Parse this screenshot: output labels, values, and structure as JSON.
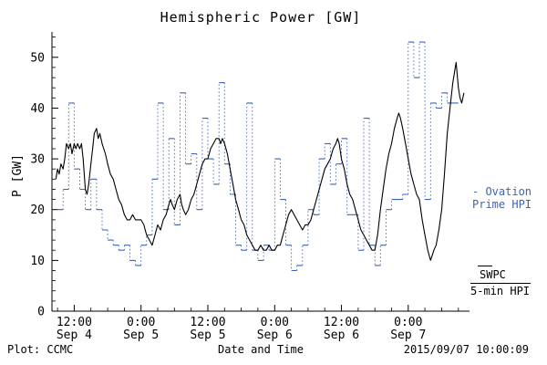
{
  "colors": {
    "swpc": "#000000",
    "ovation": "#3f63b5"
  },
  "legend": {
    "ovation_line1": "- Ovation",
    "ovation_line2": "Prime HPI",
    "swpc_line1": "SWPC",
    "swpc_line2": "5-min HPI"
  },
  "footer": {
    "credit": "Plot: CCMC",
    "timestamp": "2015/09/07 10:00:09"
  },
  "chart_data": {
    "type": "line",
    "title": "Hemispheric Power [GW]",
    "xlabel": "Date and Time",
    "ylabel": "P [GW]",
    "x_range_hours_from_sep4_0000": [
      8,
      83
    ],
    "ylim": [
      0,
      55
    ],
    "y_ticks": [
      0,
      10,
      20,
      30,
      40,
      50
    ],
    "x_ticks": [
      {
        "hour": 12,
        "line1": "12:00",
        "line2": "Sep 4"
      },
      {
        "hour": 24,
        "line1": "0:00",
        "line2": "Sep 5"
      },
      {
        "hour": 36,
        "line1": "12:00",
        "line2": "Sep 5"
      },
      {
        "hour": 48,
        "line1": "0:00",
        "line2": "Sep 6"
      },
      {
        "hour": 60,
        "line1": "12:00",
        "line2": "Sep 6"
      },
      {
        "hour": 72,
        "line1": "0:00",
        "line2": "Sep 7"
      }
    ],
    "series": [
      {
        "name": "SWPC 5-min HPI",
        "style": "line",
        "color": "#000000",
        "points": [
          [
            8.7,
            26
          ],
          [
            9,
            28
          ],
          [
            9.3,
            27
          ],
          [
            9.6,
            29
          ],
          [
            10,
            28
          ],
          [
            10.3,
            30
          ],
          [
            10.6,
            33
          ],
          [
            11,
            32
          ],
          [
            11.3,
            33
          ],
          [
            11.6,
            31
          ],
          [
            12,
            33
          ],
          [
            12.3,
            32
          ],
          [
            12.6,
            33
          ],
          [
            13,
            32
          ],
          [
            13.3,
            33
          ],
          [
            13.6,
            30
          ],
          [
            14,
            24
          ],
          [
            14.3,
            23
          ],
          [
            14.6,
            25
          ],
          [
            15,
            29
          ],
          [
            15.3,
            32
          ],
          [
            15.6,
            35
          ],
          [
            16,
            36
          ],
          [
            16.3,
            34
          ],
          [
            16.6,
            35
          ],
          [
            17,
            33
          ],
          [
            17.3,
            32
          ],
          [
            17.6,
            31
          ],
          [
            18,
            29
          ],
          [
            18.5,
            27
          ],
          [
            19,
            26
          ],
          [
            19.5,
            24
          ],
          [
            20,
            22
          ],
          [
            20.5,
            21
          ],
          [
            21,
            19
          ],
          [
            21.5,
            18
          ],
          [
            22,
            18
          ],
          [
            22.5,
            19
          ],
          [
            23,
            18
          ],
          [
            23.5,
            18
          ],
          [
            24,
            18
          ],
          [
            24.5,
            17
          ],
          [
            25,
            15
          ],
          [
            25.5,
            14
          ],
          [
            26,
            13
          ],
          [
            26.5,
            15
          ],
          [
            27,
            17
          ],
          [
            27.5,
            16
          ],
          [
            28,
            18
          ],
          [
            28.5,
            19
          ],
          [
            29,
            21
          ],
          [
            29.3,
            22
          ],
          [
            29.6,
            21
          ],
          [
            30,
            20
          ],
          [
            30.5,
            22
          ],
          [
            31,
            23
          ],
          [
            31.3,
            21
          ],
          [
            31.6,
            20
          ],
          [
            32,
            19
          ],
          [
            32.5,
            20
          ],
          [
            33,
            22
          ],
          [
            33.5,
            23
          ],
          [
            34,
            25
          ],
          [
            34.5,
            27
          ],
          [
            35,
            29
          ],
          [
            35.5,
            30
          ],
          [
            36,
            30
          ],
          [
            36.5,
            32
          ],
          [
            37,
            33
          ],
          [
            37.5,
            34
          ],
          [
            38,
            34
          ],
          [
            38.3,
            33
          ],
          [
            38.6,
            34
          ],
          [
            39,
            33
          ],
          [
            39.5,
            31
          ],
          [
            40,
            28
          ],
          [
            40.5,
            25
          ],
          [
            41,
            22
          ],
          [
            41.5,
            20
          ],
          [
            42,
            18
          ],
          [
            42.5,
            17
          ],
          [
            43,
            15
          ],
          [
            43.5,
            14
          ],
          [
            44,
            13
          ],
          [
            44.5,
            12
          ],
          [
            45,
            12
          ],
          [
            45.5,
            13
          ],
          [
            46,
            12
          ],
          [
            46.5,
            12
          ],
          [
            47,
            13
          ],
          [
            47.5,
            12
          ],
          [
            48,
            12
          ],
          [
            48.5,
            13
          ],
          [
            49,
            13
          ],
          [
            49.5,
            15
          ],
          [
            50,
            17
          ],
          [
            50.5,
            19
          ],
          [
            51,
            20
          ],
          [
            51.5,
            19
          ],
          [
            52,
            18
          ],
          [
            52.5,
            17
          ],
          [
            53,
            16
          ],
          [
            53.5,
            17
          ],
          [
            54,
            17
          ],
          [
            54.5,
            18
          ],
          [
            55,
            20
          ],
          [
            55.5,
            22
          ],
          [
            56,
            24
          ],
          [
            56.5,
            26
          ],
          [
            57,
            28
          ],
          [
            57.5,
            29
          ],
          [
            58,
            30
          ],
          [
            58.5,
            32
          ],
          [
            59,
            33
          ],
          [
            59.3,
            34
          ],
          [
            59.6,
            33
          ],
          [
            60,
            30
          ],
          [
            60.5,
            28
          ],
          [
            61,
            25
          ],
          [
            61.5,
            23
          ],
          [
            62,
            22
          ],
          [
            62.5,
            20
          ],
          [
            63,
            18
          ],
          [
            63.5,
            16
          ],
          [
            64,
            15
          ],
          [
            64.5,
            14
          ],
          [
            65,
            13
          ],
          [
            65.5,
            12
          ],
          [
            66,
            12
          ],
          [
            66.5,
            15
          ],
          [
            67,
            20
          ],
          [
            67.5,
            24
          ],
          [
            68,
            28
          ],
          [
            68.5,
            31
          ],
          [
            69,
            33
          ],
          [
            69.5,
            36
          ],
          [
            70,
            38
          ],
          [
            70.3,
            39
          ],
          [
            70.6,
            38
          ],
          [
            71,
            36
          ],
          [
            71.5,
            33
          ],
          [
            72,
            30
          ],
          [
            72.5,
            27
          ],
          [
            73,
            25
          ],
          [
            73.5,
            23
          ],
          [
            74,
            22
          ],
          [
            74.5,
            18
          ],
          [
            75,
            15
          ],
          [
            75.5,
            12
          ],
          [
            76,
            10
          ],
          [
            76.3,
            11
          ],
          [
            76.6,
            12
          ],
          [
            77,
            13
          ],
          [
            77.5,
            16
          ],
          [
            78,
            20
          ],
          [
            78.5,
            27
          ],
          [
            79,
            35
          ],
          [
            79.5,
            40
          ],
          [
            80,
            45
          ],
          [
            80.3,
            47
          ],
          [
            80.6,
            49
          ],
          [
            81,
            44
          ],
          [
            81.3,
            42
          ],
          [
            81.6,
            41
          ],
          [
            82,
            43
          ]
        ]
      },
      {
        "name": "Ovation Prime HPI",
        "style": "step",
        "color": "#3f63b5",
        "points": [
          [
            9,
            20
          ],
          [
            10,
            24
          ],
          [
            11,
            41
          ],
          [
            12,
            28
          ],
          [
            13,
            24
          ],
          [
            14,
            20
          ],
          [
            15,
            26
          ],
          [
            16,
            20
          ],
          [
            17,
            16
          ],
          [
            18,
            14
          ],
          [
            19,
            13
          ],
          [
            20,
            12
          ],
          [
            21,
            13
          ],
          [
            22,
            10
          ],
          [
            23,
            9
          ],
          [
            24,
            13
          ],
          [
            25,
            15
          ],
          [
            26,
            26
          ],
          [
            27,
            41
          ],
          [
            28,
            20
          ],
          [
            29,
            34
          ],
          [
            30,
            17
          ],
          [
            31,
            43
          ],
          [
            32,
            29
          ],
          [
            33,
            31
          ],
          [
            34,
            20
          ],
          [
            35,
            38
          ],
          [
            36,
            30
          ],
          [
            37,
            25
          ],
          [
            38,
            45
          ],
          [
            39,
            29
          ],
          [
            40,
            23
          ],
          [
            41,
            13
          ],
          [
            42,
            12
          ],
          [
            43,
            41
          ],
          [
            44,
            12
          ],
          [
            45,
            10
          ],
          [
            46,
            13
          ],
          [
            47,
            12
          ],
          [
            48,
            30
          ],
          [
            49,
            22
          ],
          [
            50,
            13
          ],
          [
            51,
            8
          ],
          [
            52,
            9
          ],
          [
            53,
            13
          ],
          [
            54,
            20
          ],
          [
            55,
            19
          ],
          [
            56,
            30
          ],
          [
            57,
            33
          ],
          [
            58,
            25
          ],
          [
            59,
            29
          ],
          [
            60,
            34
          ],
          [
            61,
            19
          ],
          [
            62,
            19
          ],
          [
            63,
            12
          ],
          [
            64,
            38
          ],
          [
            65,
            13
          ],
          [
            66,
            9
          ],
          [
            67,
            13
          ],
          [
            68,
            20
          ],
          [
            69,
            22
          ],
          [
            70,
            22
          ],
          [
            71,
            23
          ],
          [
            72,
            53
          ],
          [
            73,
            46
          ],
          [
            74,
            53
          ],
          [
            75,
            22
          ],
          [
            76,
            41
          ],
          [
            77,
            40
          ],
          [
            78,
            43
          ],
          [
            79,
            41
          ],
          [
            80,
            41
          ]
        ]
      }
    ]
  }
}
